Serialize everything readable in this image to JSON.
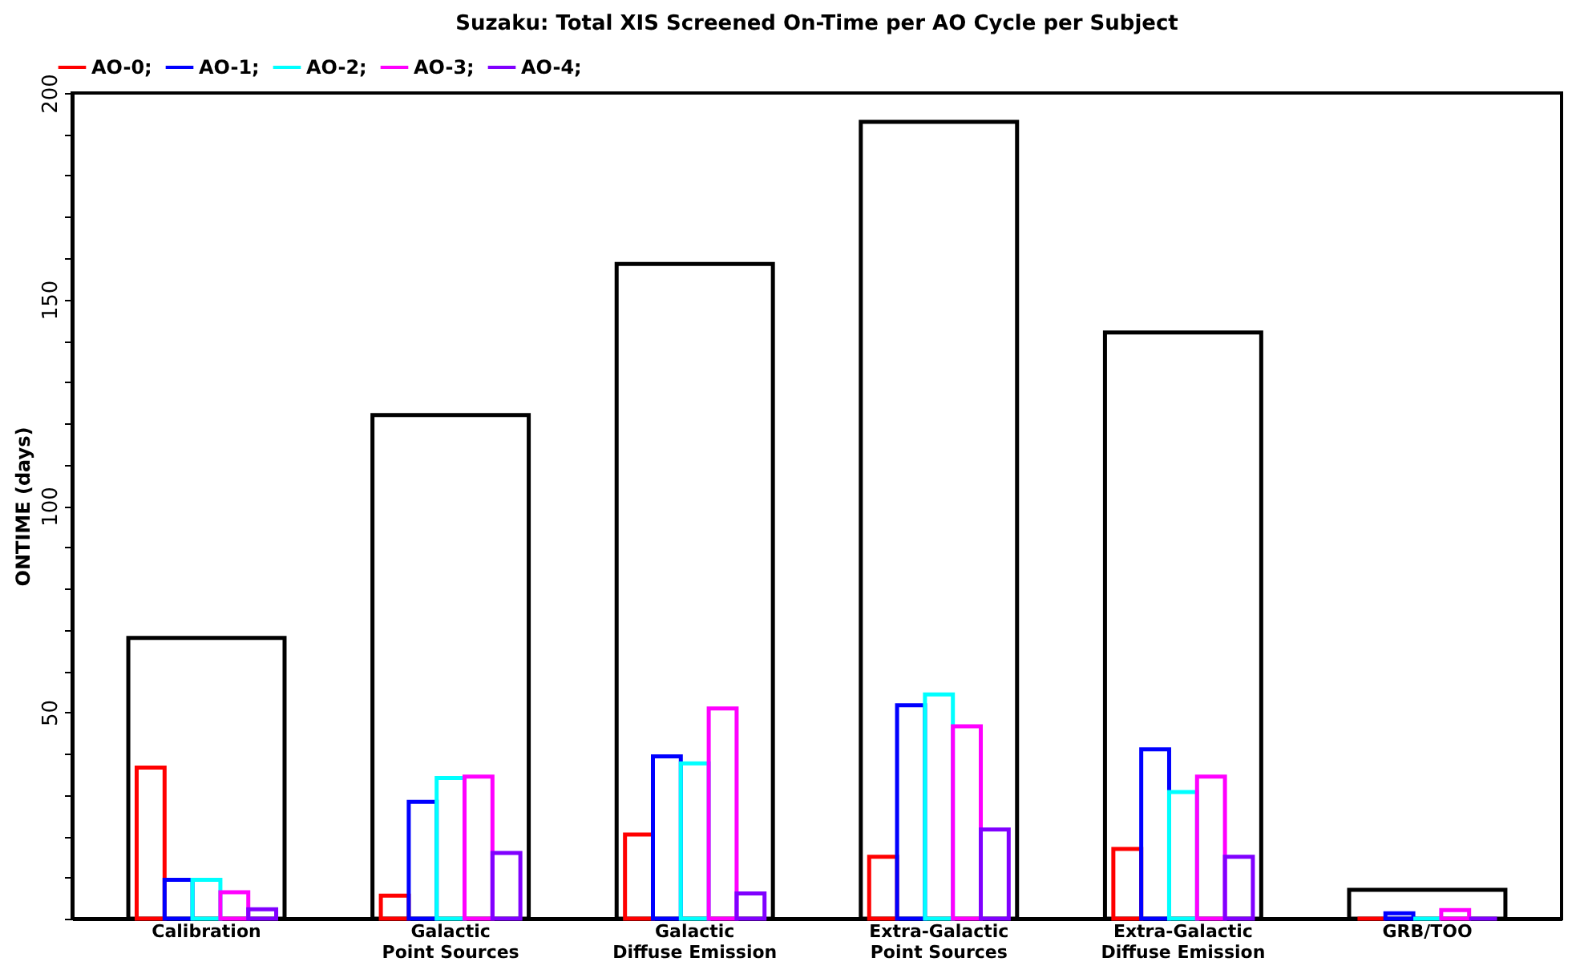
{
  "chart_data": {
    "type": "bar",
    "title": "Suzaku: Total XIS Screened On-Time per AO Cycle per Subject",
    "ylabel": "ONTIME (days)",
    "categories": [
      "Calibration",
      "Galactic\nPoint Sources",
      "Galactic\nDiffuse Emission",
      "Extra-Galactic\nPoint Sources",
      "Extra-Galactic\nDiffuse Emission",
      "GRB/TOO"
    ],
    "series": [
      {
        "color": "#000000",
        "values": [
          68,
          122,
          158.6,
          193,
          142,
          7
        ]
      },
      {
        "name": "AO-0;",
        "color": "#ff0000",
        "values": [
          36.6,
          5.6,
          20.4,
          15.0,
          16.9,
          0
        ]
      },
      {
        "name": "AO-1;",
        "color": "#0000ff",
        "values": [
          9.4,
          28.3,
          39.3,
          51.7,
          41.0,
          1.3
        ]
      },
      {
        "name": "AO-2;",
        "color": "#00ffff",
        "values": [
          9.4,
          34.1,
          37.6,
          54.3,
          30.7,
          0
        ]
      },
      {
        "name": "AO-3;",
        "color": "#ff00ff",
        "values": [
          6.4,
          34.4,
          50.9,
          46.6,
          34.4,
          2.1
        ]
      },
      {
        "name": "AO-4;",
        "color": "#8000ff",
        "values": [
          2.3,
          15.9,
          6.1,
          21.6,
          15.0,
          0
        ]
      }
    ],
    "ylim": [
      0,
      200
    ],
    "yticks": [
      {
        "value": 0,
        "label": null
      },
      {
        "value": 10,
        "label": null
      },
      {
        "value": 20,
        "label": null
      },
      {
        "value": 30,
        "label": null
      },
      {
        "value": 40,
        "label": null
      },
      50,
      {
        "value": 60,
        "label": null
      },
      {
        "value": 70,
        "label": null
      },
      {
        "value": 80,
        "label": null
      },
      {
        "value": 90,
        "label": null
      },
      100,
      {
        "value": 110,
        "label": null
      },
      {
        "value": 120,
        "label": null
      },
      {
        "value": 130,
        "label": null
      },
      {
        "value": 140,
        "label": null
      },
      150,
      {
        "value": 160,
        "label": null
      },
      {
        "value": 170,
        "label": null
      },
      {
        "value": 180,
        "label": null
      },
      {
        "value": 190,
        "label": null
      },
      200
    ],
    "grid": false,
    "legend": "top left"
  }
}
